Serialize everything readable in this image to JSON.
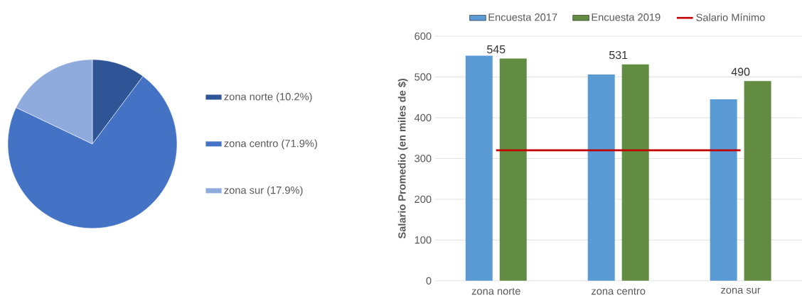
{
  "chart_data": [
    {
      "type": "pie",
      "categories": [
        "zona norte (10.2%)",
        "zona centro (71.9%)",
        "zona sur (17.9%)"
      ],
      "values": [
        10.2,
        71.9,
        17.9
      ],
      "colors": [
        "#2f5597",
        "#4472c4",
        "#8faadc"
      ],
      "legend": "right"
    },
    {
      "type": "bar",
      "categories": [
        "zona norte",
        "zona centro",
        "zona sur"
      ],
      "ylabel": "Salario Promedio (en miles de $)",
      "ylim": [
        0,
        600
      ],
      "yticks": [
        0,
        100,
        200,
        300,
        400,
        500,
        600
      ],
      "grid": "y",
      "legend": "top",
      "series": [
        {
          "name": "Encuesta 2017",
          "type": "bar",
          "color": "#5b9bd5",
          "values": [
            552,
            506,
            445
          ]
        },
        {
          "name": "Encuesta 2019",
          "type": "bar",
          "color": "#638c43",
          "values": [
            545,
            531,
            490
          ],
          "value_labels": [
            "545",
            "531",
            "490"
          ]
        },
        {
          "name": "Salario Mínimo",
          "type": "line",
          "color": "#c00000",
          "values": [
            320,
            320,
            320
          ]
        }
      ]
    }
  ]
}
